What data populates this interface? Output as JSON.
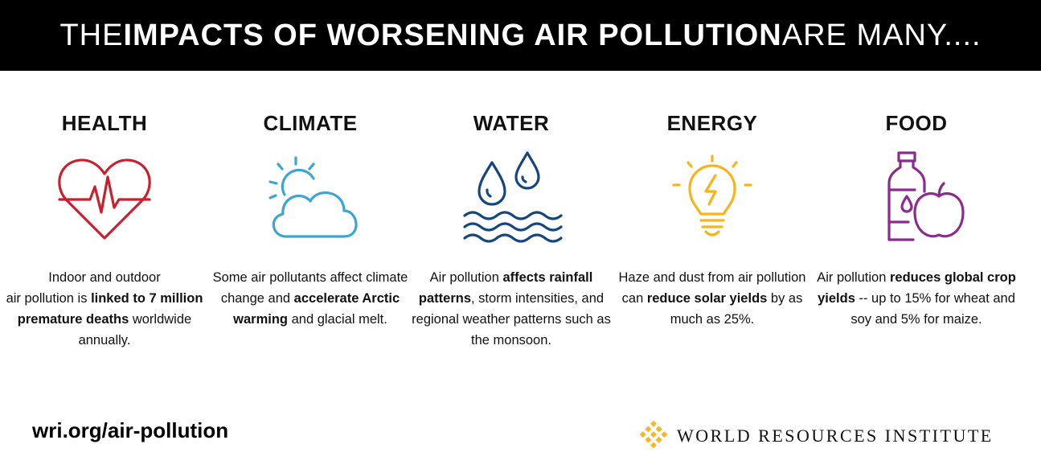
{
  "banner": {
    "part1": "THE ",
    "part2": "IMPACTS OF WORSENING AIR POLLUTION",
    "part3": " ARE MANY...."
  },
  "columns": [
    {
      "title": "HEALTH",
      "icon": "heart-pulse-icon",
      "color": "#c8202e",
      "text": [
        {
          "t": "Indoor and outdoor",
          "b": false
        },
        {
          "t": " air pollution is ",
          "b": false
        },
        {
          "t": "linked to 7 million premature deaths",
          "b": true
        },
        {
          "t": " worldwide annually.",
          "b": false
        }
      ]
    },
    {
      "title": "CLIMATE",
      "icon": "sun-cloud-icon",
      "color": "#3da4d8",
      "text": [
        {
          "t": "Some air pollutants affect climate change and ",
          "b": false
        },
        {
          "t": "accelerate Arctic warming",
          "b": true
        },
        {
          "t": " and glacial melt.",
          "b": false
        }
      ]
    },
    {
      "title": "WATER",
      "icon": "water-drops-icon",
      "color": "#15467f",
      "text": [
        {
          "t": "Air pollution ",
          "b": false
        },
        {
          "t": "affects rainfall patterns",
          "b": true
        },
        {
          "t": ", storm intensities, and regional weather patterns such as the monsoon.",
          "b": false
        }
      ]
    },
    {
      "title": "ENERGY",
      "icon": "lightbulb-bolt-icon",
      "color": "#f5b51b",
      "text": [
        {
          "t": "Haze and dust from air pollution can ",
          "b": false
        },
        {
          "t": "reduce solar yields",
          "b": true
        },
        {
          "t": " by as much as 25%.",
          "b": false
        }
      ]
    },
    {
      "title": "FOOD",
      "icon": "bottle-apple-icon",
      "color": "#8c2b8e",
      "text": [
        {
          "t": "Air pollution ",
          "b": false
        },
        {
          "t": "reduces global crop yields",
          "b": true
        },
        {
          "t": " -- up to 15% for wheat and soy and 5% for maize.",
          "b": false
        }
      ]
    }
  ],
  "footer": {
    "url": "wri.org/air-pollution",
    "brand": "WORLD RESOURCES INSTITUTE",
    "brand_icon": "wri-logo-icon",
    "brand_color": "#f3b82c"
  }
}
